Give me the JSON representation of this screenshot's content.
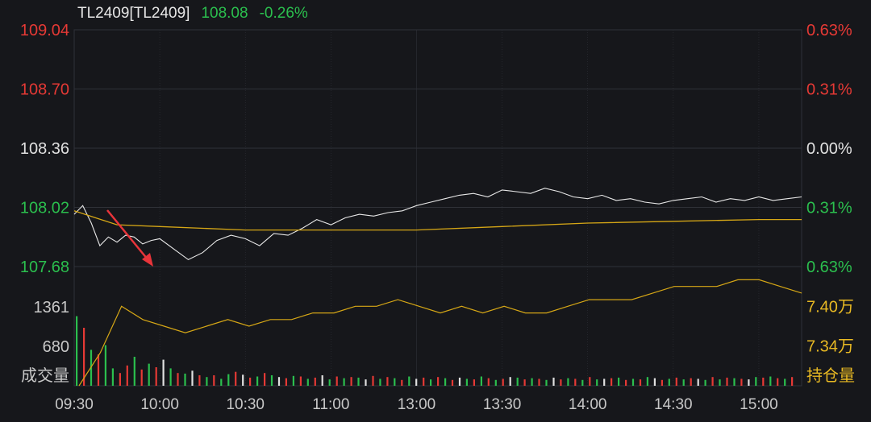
{
  "header": {
    "symbol": "TL2409[TL2409]",
    "last": "108.08",
    "change": "-0.26%"
  },
  "colors": {
    "background": "#16171b",
    "grid": "#2f3138",
    "price_line": "#e8e8e8",
    "avg_line": "#d6a716",
    "oi_line": "#d6a716",
    "up": "#e53935",
    "down": "#2bbf4e",
    "neutral": "#e0e0e0",
    "axis_text": "#c8c8c8",
    "oi_label": "#e8b923",
    "annotation_arrow": "#e8343a"
  },
  "chart_data": [
    {
      "type": "line",
      "name": "price-panel",
      "x_ticks": [
        "09:30",
        "10:00",
        "10:30",
        "11:00",
        "13:00",
        "13:30",
        "14:00",
        "14:30",
        "15:00"
      ],
      "y_left_ticks": [
        {
          "label": "109.04",
          "value": 109.04,
          "color": "up"
        },
        {
          "label": "108.70",
          "value": 108.7,
          "color": "up"
        },
        {
          "label": "108.36",
          "value": 108.36,
          "color": "neutral"
        },
        {
          "label": "108.02",
          "value": 108.02,
          "color": "down"
        },
        {
          "label": "107.68",
          "value": 107.68,
          "color": "down"
        }
      ],
      "y_right_ticks": [
        {
          "label": "0.63%",
          "color": "up"
        },
        {
          "label": "0.31%",
          "color": "up"
        },
        {
          "label": "0.00%",
          "color": "neutral"
        },
        {
          "label": "0.31%",
          "color": "down"
        },
        {
          "label": "0.63%",
          "color": "down"
        }
      ],
      "ylim": [
        107.68,
        109.04
      ],
      "series": [
        {
          "role": "price",
          "x": [
            "09:30",
            "09:33",
            "09:36",
            "09:39",
            "09:42",
            "09:45",
            "09:48",
            "09:51",
            "09:54",
            "09:57",
            "10:00",
            "10:05",
            "10:10",
            "10:15",
            "10:20",
            "10:25",
            "10:30",
            "10:35",
            "10:40",
            "10:45",
            "10:50",
            "10:55",
            "11:00",
            "11:05",
            "11:10",
            "11:15",
            "11:20",
            "11:25",
            "11:30",
            "13:05",
            "13:10",
            "13:15",
            "13:20",
            "13:25",
            "13:30",
            "13:35",
            "13:40",
            "13:45",
            "13:50",
            "13:55",
            "14:00",
            "14:05",
            "14:10",
            "14:15",
            "14:20",
            "14:25",
            "14:30",
            "14:35",
            "14:40",
            "14:45",
            "14:50",
            "14:55",
            "15:00",
            "15:05",
            "15:10",
            "15:15"
          ],
          "values": [
            107.98,
            108.03,
            107.93,
            107.8,
            107.85,
            107.82,
            107.86,
            107.85,
            107.81,
            107.83,
            107.84,
            107.78,
            107.72,
            107.76,
            107.83,
            107.86,
            107.84,
            107.8,
            107.87,
            107.86,
            107.9,
            107.95,
            107.92,
            107.96,
            107.98,
            107.97,
            107.99,
            108.0,
            108.03,
            108.05,
            108.07,
            108.09,
            108.1,
            108.08,
            108.12,
            108.11,
            108.1,
            108.13,
            108.11,
            108.08,
            108.07,
            108.09,
            108.06,
            108.07,
            108.05,
            108.04,
            108.06,
            108.07,
            108.08,
            108.05,
            108.07,
            108.06,
            108.08,
            108.06,
            108.07,
            108.08
          ]
        },
        {
          "role": "average",
          "x": [
            "09:30",
            "09:45",
            "10:00",
            "10:30",
            "11:00",
            "11:30",
            "13:30",
            "14:00",
            "14:30",
            "15:00",
            "15:15"
          ],
          "values": [
            108.0,
            107.92,
            107.91,
            107.89,
            107.89,
            107.89,
            107.91,
            107.93,
            107.94,
            107.95,
            107.95
          ]
        }
      ]
    },
    {
      "type": "bar",
      "name": "volume-open-interest-panel",
      "left_label": "成交量",
      "right_label": "持仓量",
      "volume_ticks": [
        {
          "label": "1361",
          "value": 1361
        },
        {
          "label": "680",
          "value": 680
        }
      ],
      "oi_ticks": [
        {
          "label": "7.40万",
          "value": 7.4
        },
        {
          "label": "7.34万",
          "value": 7.34
        }
      ],
      "volume_ylim": [
        0,
        1361
      ],
      "oi_ylim": [
        7.28,
        7.46
      ],
      "volume_values": [
        1200,
        1000,
        620,
        540,
        700,
        300,
        220,
        350,
        500,
        280,
        380,
        320,
        450,
        300,
        220,
        210,
        260,
        180,
        150,
        180,
        120,
        200,
        240,
        190,
        140,
        160,
        220,
        180,
        150,
        130,
        170,
        160,
        120,
        140,
        180,
        110,
        160,
        130,
        150,
        140,
        110,
        170,
        120,
        150,
        130,
        100,
        160,
        120,
        140,
        110,
        150,
        130,
        100,
        140,
        120,
        110,
        160,
        130,
        100,
        120,
        150,
        140,
        110,
        130,
        120,
        100,
        140,
        110,
        130,
        120,
        100,
        150,
        110,
        120,
        130,
        140,
        100,
        120,
        110,
        150,
        130,
        100,
        120,
        140,
        110,
        130,
        120,
        100,
        150,
        110,
        140,
        130,
        120,
        110,
        150,
        140,
        160,
        130,
        120,
        150
      ],
      "volume_colors": [
        "down",
        "up",
        "down",
        "up",
        "down",
        "down",
        "up",
        "up",
        "down",
        "up",
        "down",
        "up",
        "neutral",
        "down",
        "up",
        "down",
        "neutral",
        "up",
        "down",
        "up",
        "down",
        "down",
        "up",
        "neutral",
        "up",
        "down",
        "up",
        "down",
        "neutral",
        "up",
        "down",
        "up",
        "down",
        "up",
        "neutral",
        "down",
        "up",
        "down",
        "up",
        "down",
        "neutral",
        "up",
        "down",
        "up",
        "down",
        "up",
        "down",
        "neutral",
        "up",
        "down",
        "up",
        "down",
        "up",
        "neutral",
        "down",
        "up",
        "down",
        "up",
        "down",
        "up",
        "neutral",
        "down",
        "up",
        "down",
        "up",
        "down",
        "neutral",
        "up",
        "down",
        "up",
        "down",
        "up",
        "down",
        "neutral",
        "up",
        "down",
        "up",
        "down",
        "up",
        "down",
        "neutral",
        "up",
        "down",
        "up",
        "down",
        "up",
        "neutral",
        "down",
        "up",
        "down",
        "up",
        "down",
        "up",
        "neutral",
        "down",
        "up",
        "down",
        "up",
        "down",
        "up"
      ],
      "oi_values": [
        7.28,
        7.33,
        7.4,
        7.38,
        7.37,
        7.36,
        7.37,
        7.38,
        7.37,
        7.38,
        7.38,
        7.39,
        7.39,
        7.4,
        7.4,
        7.41,
        7.4,
        7.39,
        7.4,
        7.39,
        7.4,
        7.39,
        7.39,
        7.4,
        7.41,
        7.41,
        7.41,
        7.42,
        7.43,
        7.43,
        7.43,
        7.44,
        7.44,
        7.43,
        7.42
      ]
    }
  ]
}
